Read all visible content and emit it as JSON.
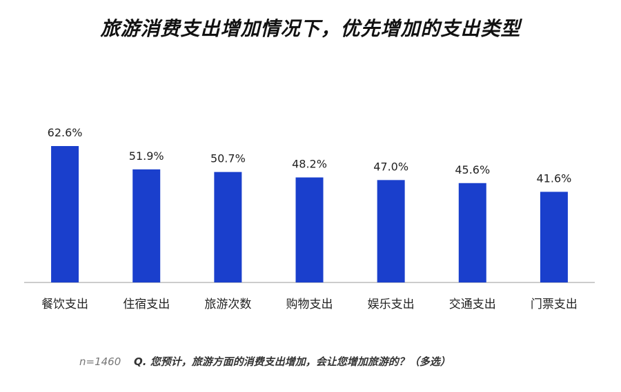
{
  "title": "旅游消费支出增加情况下，优先增加的支出类型",
  "footnote": {
    "sample": "n=1460",
    "question": "Q. 您预计，旅游方面的消费支出增加，会让您增加旅游的？（多选）"
  },
  "colors": {
    "bar": "#1a3fcc",
    "axis": "#999999",
    "label": "#222222"
  },
  "chart_data": {
    "type": "bar",
    "categories": [
      "餐饮支出",
      "住宿支出",
      "旅游次数",
      "购物支出",
      "娱乐支出",
      "交通支出",
      "门票支出"
    ],
    "values": [
      62.6,
      51.9,
      50.7,
      48.2,
      47.0,
      45.6,
      41.6
    ],
    "value_labels": [
      "62.6%",
      "51.9%",
      "50.7%",
      "48.2%",
      "47.0%",
      "45.6%",
      "41.6%"
    ],
    "unit": "%",
    "ylim": [
      0,
      62.6
    ],
    "grid": false,
    "legend": "none"
  }
}
